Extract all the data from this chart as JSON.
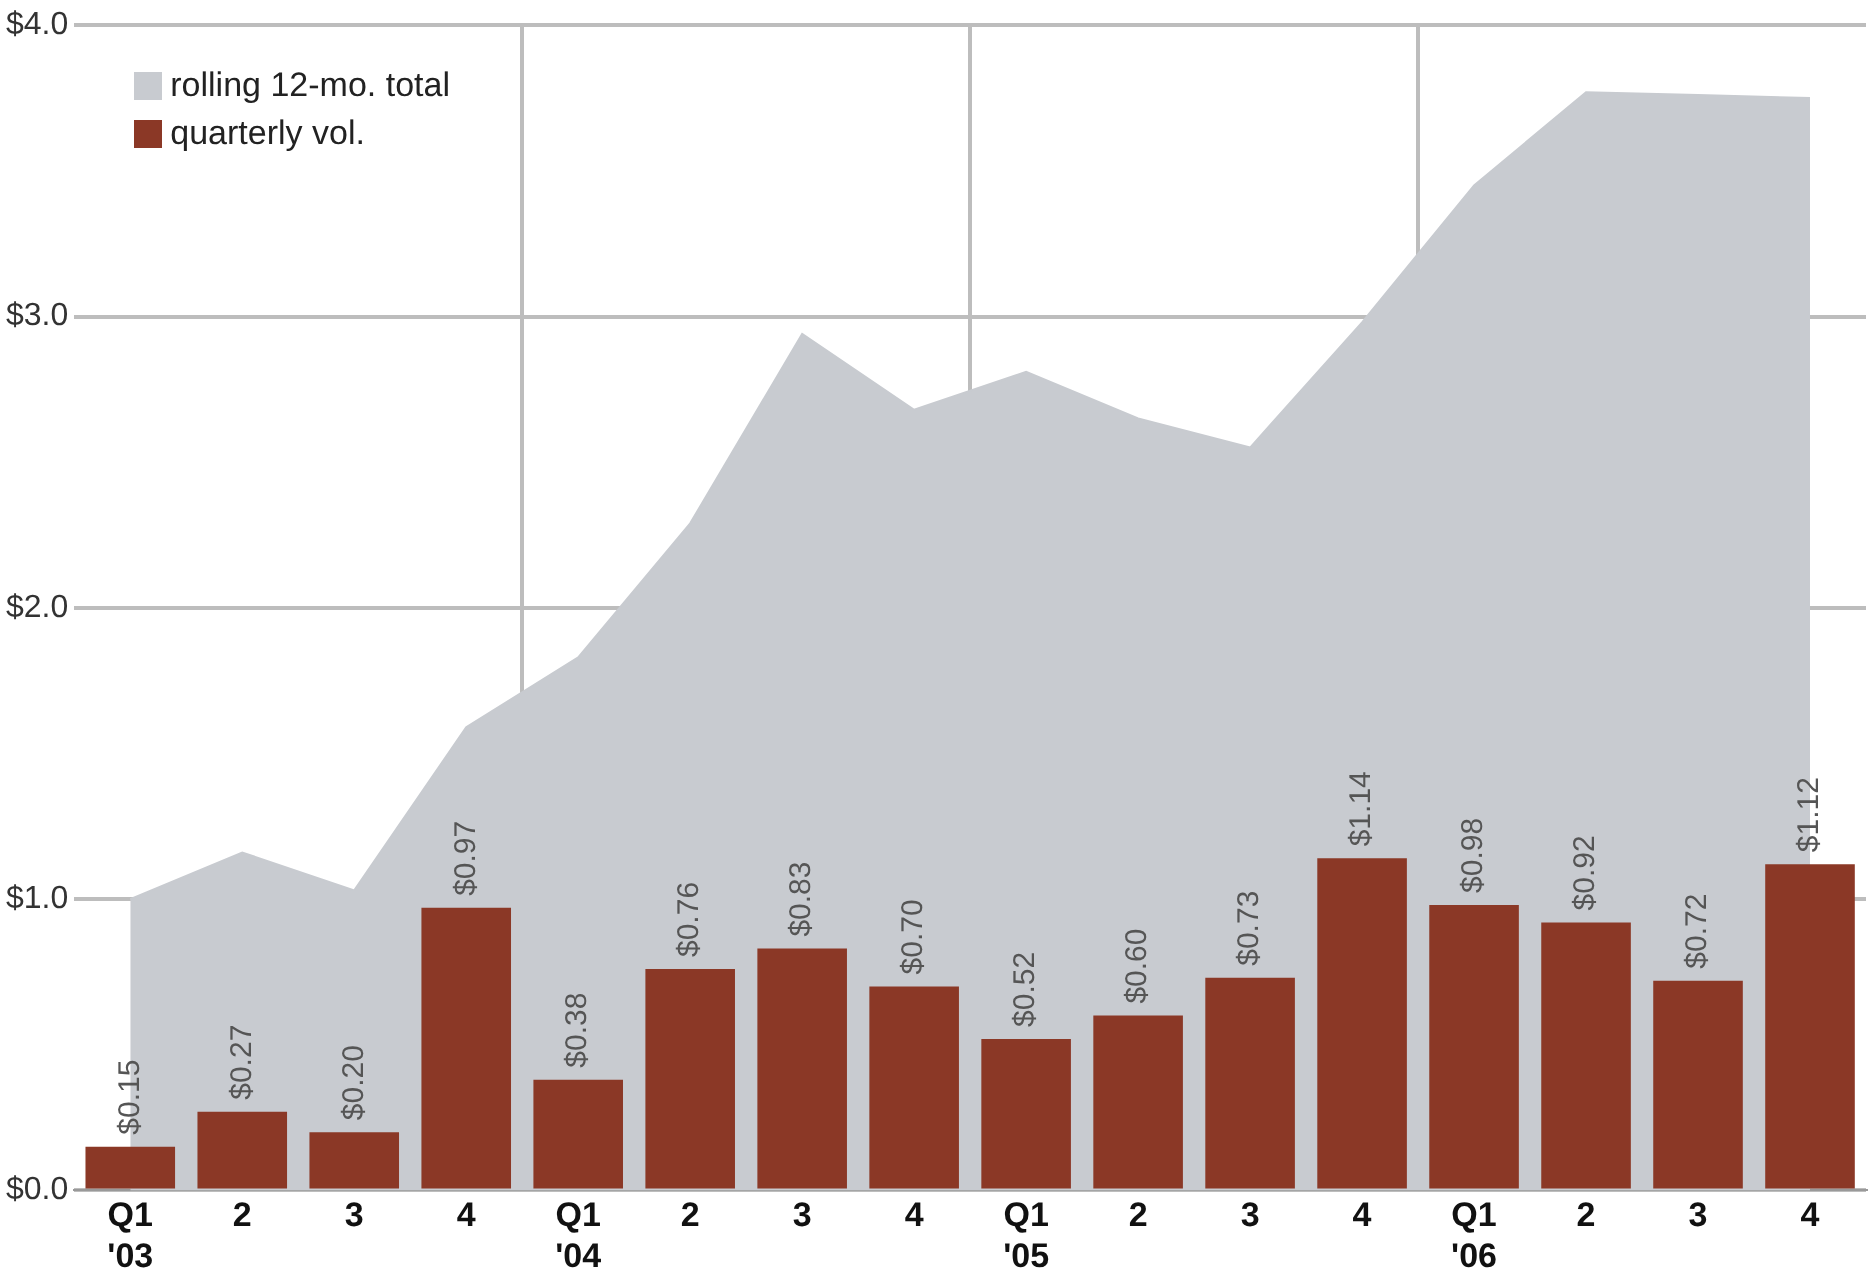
{
  "chart_data": {
    "type": "bar",
    "categories": [
      "Q1\n'03",
      "2",
      "3",
      "4",
      "Q1\n'04",
      "2",
      "3",
      "4",
      "Q1\n'05",
      "2",
      "3",
      "4",
      "Q1\n'06",
      "2",
      "3",
      "4"
    ],
    "series": [
      {
        "name": "rolling 12-mo. total",
        "type": "area",
        "color": "#c8cbd0",
        "values": [
          1.0,
          1.16,
          1.03,
          1.59,
          1.83,
          2.29,
          2.94,
          2.68,
          2.81,
          2.65,
          2.55,
          2.98,
          3.45,
          3.77,
          3.76,
          3.75
        ]
      },
      {
        "name": "quarterly vol.",
        "color": "#8b3826",
        "values": [
          0.15,
          0.27,
          0.2,
          0.97,
          0.38,
          0.76,
          0.83,
          0.7,
          0.52,
          0.6,
          0.73,
          1.14,
          0.98,
          0.92,
          0.72,
          1.12
        ],
        "value_labels": [
          "$0.15",
          "$0.27",
          "$0.20",
          "$0.97",
          "$0.38",
          "$0.76",
          "$0.83",
          "$0.70",
          "$0.52",
          "$0.60",
          "$0.73",
          "$1.14",
          "$0.98",
          "$0.92",
          "$0.72",
          "$1.12"
        ]
      }
    ],
    "ylim": [
      0,
      4
    ],
    "yticks": [
      {
        "value": 0,
        "label": "$0.0"
      },
      {
        "value": 1,
        "label": "$1.0"
      },
      {
        "value": 2,
        "label": "$2.0"
      },
      {
        "value": 3,
        "label": "$3.0"
      },
      {
        "value": 4,
        "label": "$4.0"
      }
    ],
    "grid": true,
    "legend": "top left"
  }
}
